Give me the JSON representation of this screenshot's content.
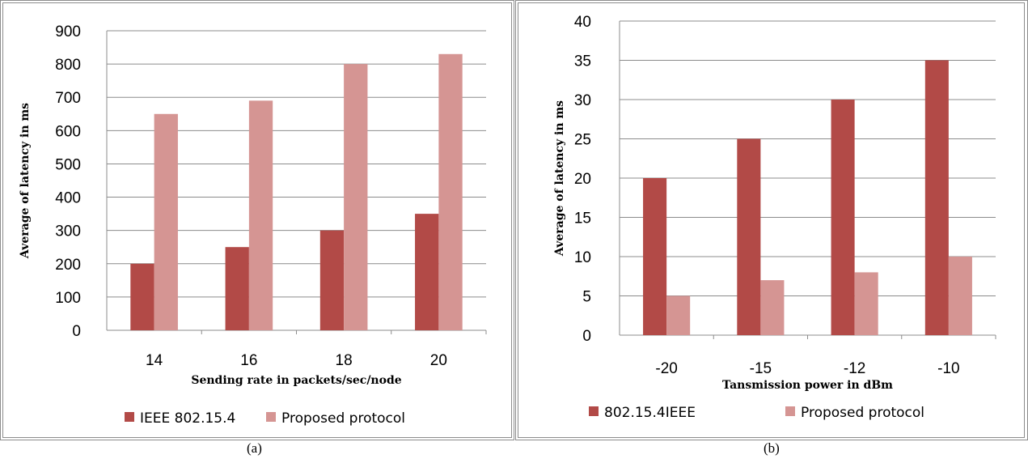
{
  "colors": {
    "series1": "#b24a47",
    "series2": "#d59593",
    "grid": "#8c8c8c",
    "axis": "#8c8c8c"
  },
  "captions": [
    "(a)",
    "(b)"
  ],
  "chart_data": [
    {
      "type": "bar",
      "categories": [
        "14",
        "16",
        "18",
        "20"
      ],
      "series": [
        {
          "name": "IEEE 802.15.4",
          "values": [
            200,
            250,
            300,
            350
          ]
        },
        {
          "name": "Proposed protocol",
          "values": [
            650,
            690,
            800,
            830
          ]
        }
      ],
      "xlabel": "Sending rate in packets/sec/node",
      "ylabel": "Average of latency in ms",
      "ylim": [
        0,
        900
      ],
      "yticks": [
        0,
        100,
        200,
        300,
        400,
        500,
        600,
        700,
        800,
        900
      ],
      "grid": true,
      "legend_position": "bottom"
    },
    {
      "type": "bar",
      "categories": [
        "-20",
        "-15",
        "-12",
        "-10"
      ],
      "series": [
        {
          "name": "802.15.4IEEE",
          "values": [
            20,
            25,
            30,
            35
          ]
        },
        {
          "name": "Proposed protocol",
          "values": [
            5,
            7,
            8,
            10
          ]
        }
      ],
      "xlabel": "Tansmission power in dBm",
      "ylabel": "Average of latency in ms",
      "ylim": [
        0,
        40
      ],
      "yticks": [
        0,
        5,
        10,
        15,
        20,
        25,
        30,
        35,
        40
      ],
      "grid": true,
      "legend_position": "bottom"
    }
  ]
}
